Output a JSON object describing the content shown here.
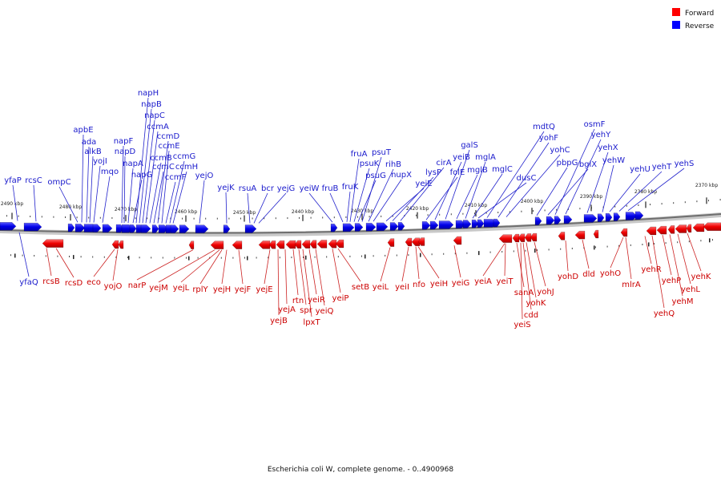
{
  "caption": "Escherichia coli W, complete genome. - 0..4900968",
  "legend": [
    {
      "label": "Forward",
      "color": "#ff0000"
    },
    {
      "label": "Reverse",
      "color": "#0000ff"
    }
  ],
  "colors": {
    "forward": "#ff0000",
    "reverse": "#0000ff",
    "backbone": "#777777"
  },
  "ticks": [
    "2490 kbp",
    "2480 kbp",
    "2470 kbp",
    "2460 kbp",
    "2450 kbp",
    "2440 kbp",
    "2430 kbp",
    "2420 kbp",
    "2410 kbp",
    "2400 kbp",
    "2390 kbp",
    "2380 kbp",
    "2370 kbp"
  ],
  "reverse_genes": [
    "yfaP",
    "rcsC",
    "ompC",
    "apbE",
    "ada",
    "alkB",
    "yojI",
    "mqo",
    "napF",
    "napD",
    "napA",
    "napG",
    "napH",
    "napB",
    "napC",
    "ccmA",
    "ccmB",
    "ccmC",
    "ccmD",
    "ccmE",
    "ccmF",
    "ccmG",
    "ccmH",
    "yejO",
    "yejK",
    "rsuA",
    "bcr",
    "yejG",
    "yeiW",
    "fruB",
    "fruK",
    "fruA",
    "psuK",
    "psuG",
    "psuT",
    "rihB",
    "nupX",
    "yeiE",
    "lysP",
    "cirA",
    "folE",
    "yeiB",
    "galS",
    "mglB",
    "mglA",
    "mglC",
    "dusC",
    "mdtQ",
    "yohF",
    "yohC",
    "pbpG",
    "bglX",
    "osmF",
    "yehY",
    "yehX",
    "yehW",
    "yehU",
    "yehT",
    "yehS",
    "yfaQ"
  ],
  "forward_genes": [
    "rcsB",
    "rcsD",
    "eco",
    "yojO",
    "narP",
    "yejM",
    "yejL",
    "rplY",
    "yejH",
    "yejF",
    "yejE",
    "yejB",
    "yejA",
    "rtn",
    "spr",
    "lpxT",
    "yeiR",
    "yeiQ",
    "yeiP",
    "setB",
    "yeiL",
    "yeiI",
    "nfo",
    "yeiH",
    "yeiG",
    "yeiA",
    "yeiT",
    "sanA",
    "yeiS",
    "cdd",
    "yohK",
    "yohJ",
    "yohD",
    "dld",
    "yohO",
    "mlrA",
    "yehR",
    "yehQ",
    "yehP",
    "yehM",
    "yehL",
    "yehK"
  ]
}
